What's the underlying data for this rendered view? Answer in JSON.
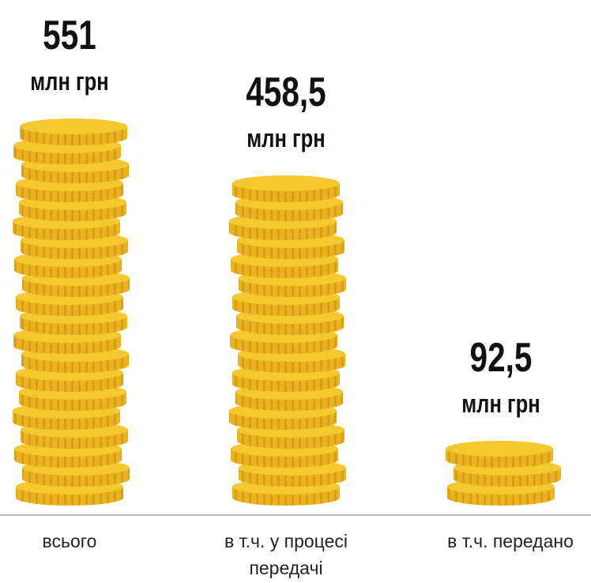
{
  "chart_data": {
    "type": "bar",
    "categories": [
      "всього",
      "в т.ч. у процесі передачі",
      "в т.ч. передано"
    ],
    "values": [
      551,
      458.5,
      92.5
    ],
    "value_labels": [
      "551",
      "458,5",
      "92,5"
    ],
    "unit": "млн грн",
    "color": "#f5c830"
  }
}
